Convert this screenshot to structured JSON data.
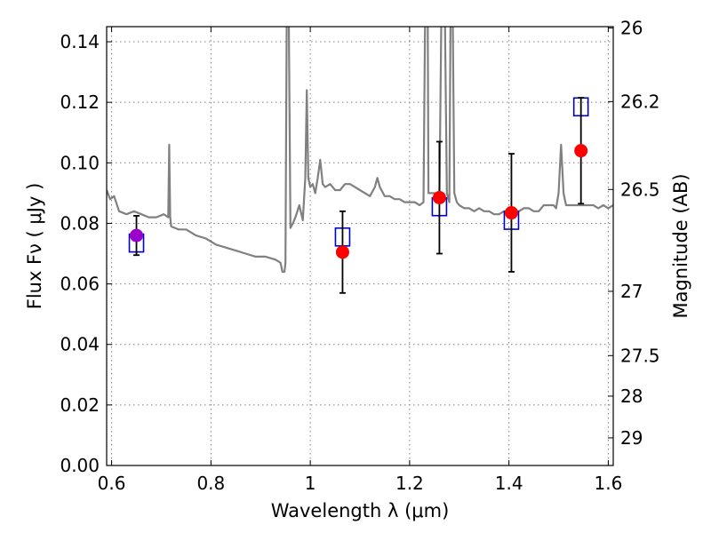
{
  "chart_data": {
    "type": "scatter",
    "xlabel": "Wavelength  λ (μm)",
    "ylabel": "Flux  Fν  ( μJy )",
    "y2label": "Magnitude (AB)",
    "xlim": [
      0.59,
      1.61
    ],
    "ylim": [
      0.0,
      0.145
    ],
    "grid": true,
    "xticks": [
      0.6,
      0.8,
      1.0,
      1.2,
      1.4,
      1.6
    ],
    "xtick_labels": [
      "0.6",
      "0.8",
      "1",
      "1.2",
      "1.4",
      "1.6"
    ],
    "yticks": [
      0.0,
      0.02,
      0.04,
      0.06,
      0.08,
      0.1,
      0.12,
      0.14
    ],
    "ytick_labels": [
      "0.00",
      "0.02",
      "0.04",
      "0.06",
      "0.08",
      "0.10",
      "0.12",
      "0.14"
    ],
    "y2ticks": [
      26,
      26.2,
      26.5,
      27,
      27.5,
      28,
      29
    ],
    "y2tick_labels": [
      "26",
      "26.2",
      "26.5",
      "27",
      "27.5",
      "28",
      "29"
    ],
    "colors": {
      "spectrum": "#808080",
      "observed": "#ff0000",
      "observed_first": "#9900cc",
      "model": "#0000cc",
      "errorbar": "#000000"
    },
    "series": [
      {
        "type": "line",
        "x": [
          0.59,
          0.597,
          0.605,
          0.615,
          0.63,
          0.645,
          0.66,
          0.675,
          0.69,
          0.705,
          0.714,
          0.716,
          0.718,
          0.72,
          0.735,
          0.75,
          0.77,
          0.79,
          0.81,
          0.83,
          0.85,
          0.87,
          0.89,
          0.91,
          0.93,
          0.94,
          0.944,
          0.948,
          0.95,
          0.953,
          0.956,
          0.96,
          0.965,
          0.97,
          0.978,
          0.985,
          0.99,
          0.993,
          0.996,
          1.0,
          1.005,
          1.01,
          1.015,
          1.02,
          1.025,
          1.03,
          1.04,
          1.05,
          1.06,
          1.07,
          1.08,
          1.09,
          1.1,
          1.11,
          1.12,
          1.13,
          1.135,
          1.14,
          1.15,
          1.16,
          1.17,
          1.18,
          1.19,
          1.2,
          1.21,
          1.22,
          1.228,
          1.232,
          1.236,
          1.238,
          1.25,
          1.26,
          1.265,
          1.27,
          1.275,
          1.28,
          1.283,
          1.286,
          1.29,
          1.295,
          1.3,
          1.31,
          1.32,
          1.33,
          1.34,
          1.35,
          1.36,
          1.37,
          1.38,
          1.39,
          1.4,
          1.41,
          1.42,
          1.43,
          1.44,
          1.45,
          1.46,
          1.47,
          1.48,
          1.49,
          1.495,
          1.5,
          1.505,
          1.51,
          1.515,
          1.52,
          1.53,
          1.54,
          1.55,
          1.56,
          1.57,
          1.58,
          1.59,
          1.6,
          1.61
        ],
        "y": [
          0.091,
          0.088,
          0.089,
          0.084,
          0.083,
          0.084,
          0.083,
          0.082,
          0.082,
          0.083,
          0.082,
          0.106,
          0.082,
          0.079,
          0.078,
          0.078,
          0.076,
          0.075,
          0.073,
          0.072,
          0.071,
          0.07,
          0.069,
          0.069,
          0.068,
          0.067,
          0.064,
          0.064,
          0.067,
          0.165,
          0.165,
          0.0785,
          0.08,
          0.082,
          0.086,
          0.081,
          0.095,
          0.124,
          0.095,
          0.092,
          0.093,
          0.09,
          0.095,
          0.101,
          0.093,
          0.092,
          0.093,
          0.091,
          0.091,
          0.093,
          0.093,
          0.092,
          0.091,
          0.09,
          0.089,
          0.092,
          0.095,
          0.092,
          0.089,
          0.089,
          0.088,
          0.088,
          0.087,
          0.087,
          0.087,
          0.086,
          0.087,
          0.165,
          0.165,
          0.09,
          0.09,
          0.088,
          0.165,
          0.165,
          0.09,
          0.087,
          0.165,
          0.165,
          0.09,
          0.087,
          0.086,
          0.085,
          0.085,
          0.084,
          0.085,
          0.084,
          0.084,
          0.083,
          0.083,
          0.084,
          0.084,
          0.084,
          0.084,
          0.085,
          0.085,
          0.084,
          0.084,
          0.086,
          0.086,
          0.086,
          0.085,
          0.09,
          0.106,
          0.09,
          0.086,
          0.086,
          0.086,
          0.086,
          0.086,
          0.086,
          0.086,
          0.085,
          0.086,
          0.085,
          0.086
        ]
      },
      {
        "type": "errorbar",
        "x": [
          0.65,
          1.065,
          1.26,
          1.405,
          1.545
        ],
        "y": [
          0.076,
          0.0705,
          0.0885,
          0.0835,
          0.104
        ],
        "yerr": [
          0.0065,
          0.0135,
          0.0185,
          0.0195,
          0.0175
        ]
      },
      {
        "type": "scatter",
        "marker": "square",
        "x": [
          0.65,
          1.065,
          1.26,
          1.405,
          1.545
        ],
        "y": [
          0.0735,
          0.0755,
          0.0855,
          0.081,
          0.1185
        ]
      }
    ]
  }
}
